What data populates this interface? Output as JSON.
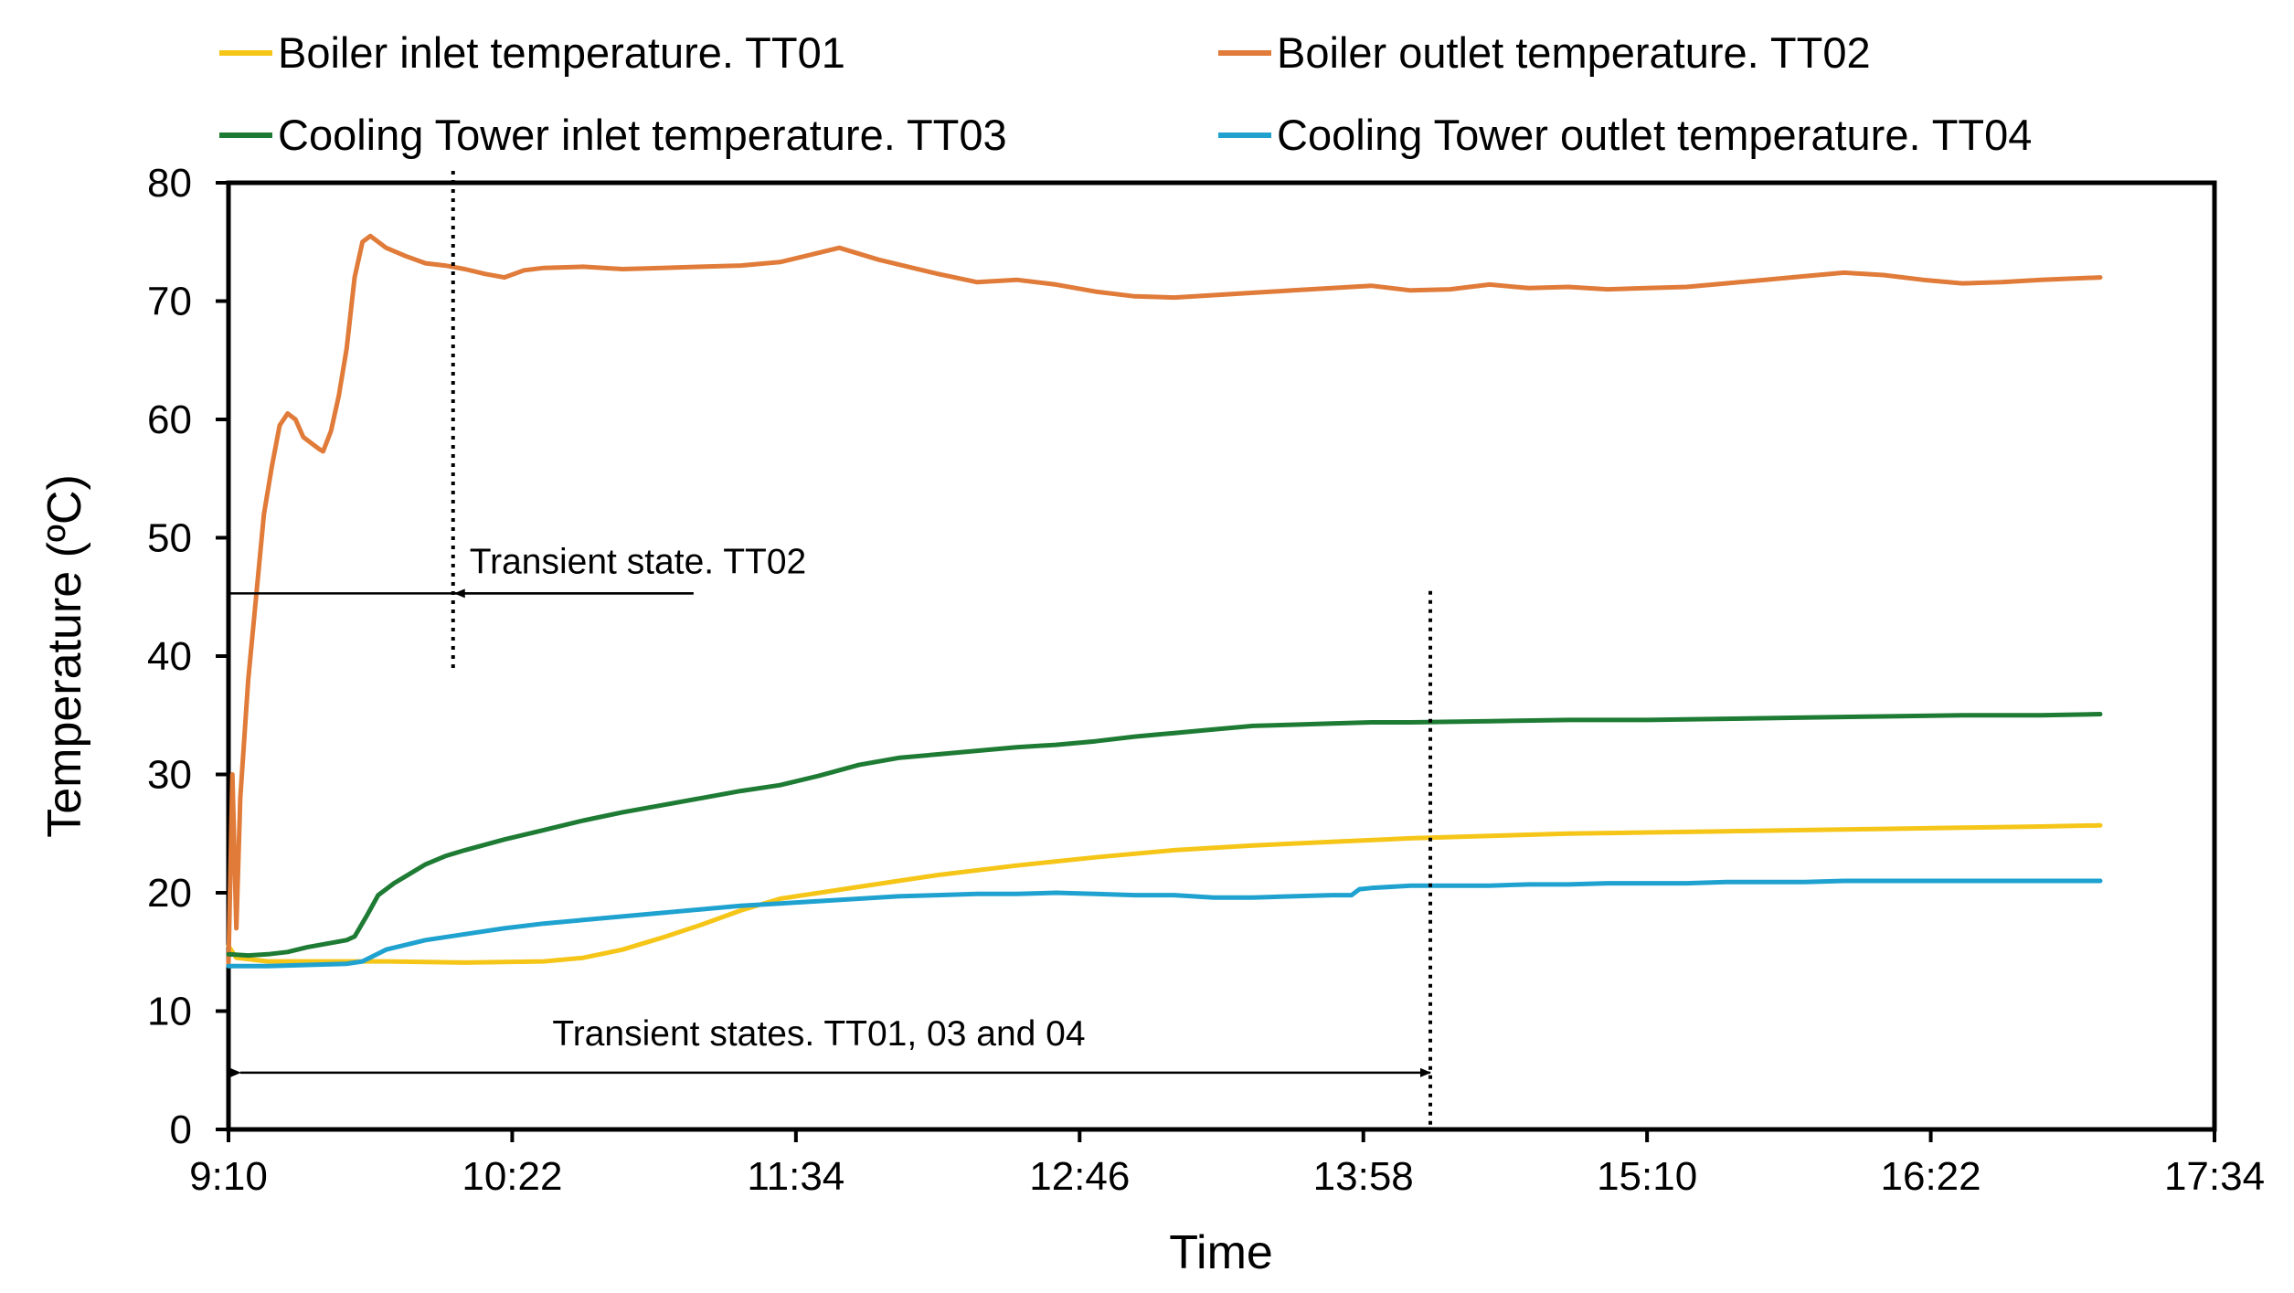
{
  "chart_data": {
    "type": "line",
    "title": "",
    "xlabel": "Time",
    "ylabel": "Temperature (ºC)",
    "x_unit": "minutes since 9:10",
    "xlim": [
      0,
      504
    ],
    "ylim": [
      0,
      80
    ],
    "x_ticks": [
      {
        "value": 0,
        "label": "9:10"
      },
      {
        "value": 72,
        "label": "10:22"
      },
      {
        "value": 144,
        "label": "11:34"
      },
      {
        "value": 216,
        "label": "12:46"
      },
      {
        "value": 288,
        "label": "13:58"
      },
      {
        "value": 360,
        "label": "15:10"
      },
      {
        "value": 432,
        "label": "16:22"
      },
      {
        "value": 504,
        "label": "17:34"
      }
    ],
    "y_ticks": [
      0,
      10,
      20,
      30,
      40,
      50,
      60,
      70,
      80
    ],
    "grid": false,
    "legend_position": "top",
    "series": [
      {
        "name": "Boiler inlet temperature. TT01",
        "color": "#F5C518",
        "points": [
          [
            0,
            15.5
          ],
          [
            2,
            14.5
          ],
          [
            10,
            14.2
          ],
          [
            40,
            14.2
          ],
          [
            60,
            14.1
          ],
          [
            80,
            14.2
          ],
          [
            90,
            14.5
          ],
          [
            100,
            15.2
          ],
          [
            110,
            16.2
          ],
          [
            120,
            17.3
          ],
          [
            130,
            18.5
          ],
          [
            140,
            19.5
          ],
          [
            160,
            20.5
          ],
          [
            180,
            21.5
          ],
          [
            200,
            22.3
          ],
          [
            220,
            23.0
          ],
          [
            240,
            23.6
          ],
          [
            260,
            24.0
          ],
          [
            280,
            24.3
          ],
          [
            300,
            24.6
          ],
          [
            320,
            24.8
          ],
          [
            340,
            25.0
          ],
          [
            360,
            25.1
          ],
          [
            380,
            25.2
          ],
          [
            400,
            25.3
          ],
          [
            420,
            25.4
          ],
          [
            440,
            25.5
          ],
          [
            460,
            25.6
          ],
          [
            475,
            25.7
          ]
        ]
      },
      {
        "name": "Boiler outlet temperature. TT02",
        "color": "#E07B39",
        "points": [
          [
            0,
            14
          ],
          [
            1,
            30
          ],
          [
            2,
            17
          ],
          [
            3,
            28
          ],
          [
            5,
            38
          ],
          [
            7,
            45
          ],
          [
            9,
            52
          ],
          [
            11,
            56
          ],
          [
            13,
            59.5
          ],
          [
            15,
            60.5
          ],
          [
            17,
            60
          ],
          [
            19,
            58.5
          ],
          [
            21,
            58
          ],
          [
            23,
            57.5
          ],
          [
            24,
            57.3
          ],
          [
            26,
            59
          ],
          [
            28,
            62
          ],
          [
            30,
            66
          ],
          [
            32,
            72
          ],
          [
            34,
            75
          ],
          [
            36,
            75.5
          ],
          [
            40,
            74.5
          ],
          [
            45,
            73.8
          ],
          [
            50,
            73.2
          ],
          [
            55,
            73
          ],
          [
            60,
            72.7
          ],
          [
            65,
            72.3
          ],
          [
            70,
            72
          ],
          [
            75,
            72.6
          ],
          [
            80,
            72.8
          ],
          [
            90,
            72.9
          ],
          [
            100,
            72.7
          ],
          [
            110,
            72.8
          ],
          [
            120,
            72.9
          ],
          [
            130,
            73
          ],
          [
            140,
            73.3
          ],
          [
            150,
            74.1
          ],
          [
            155,
            74.5
          ],
          [
            165,
            73.5
          ],
          [
            180,
            72.3
          ],
          [
            190,
            71.6
          ],
          [
            200,
            71.8
          ],
          [
            210,
            71.4
          ],
          [
            220,
            70.8
          ],
          [
            230,
            70.4
          ],
          [
            240,
            70.3
          ],
          [
            250,
            70.5
          ],
          [
            260,
            70.7
          ],
          [
            270,
            70.9
          ],
          [
            280,
            71.1
          ],
          [
            290,
            71.3
          ],
          [
            300,
            70.9
          ],
          [
            310,
            71
          ],
          [
            320,
            71.4
          ],
          [
            330,
            71.1
          ],
          [
            340,
            71.2
          ],
          [
            350,
            71
          ],
          [
            360,
            71.1
          ],
          [
            370,
            71.2
          ],
          [
            380,
            71.5
          ],
          [
            390,
            71.8
          ],
          [
            400,
            72.1
          ],
          [
            410,
            72.4
          ],
          [
            420,
            72.2
          ],
          [
            430,
            71.8
          ],
          [
            440,
            71.5
          ],
          [
            450,
            71.6
          ],
          [
            460,
            71.8
          ],
          [
            475,
            72
          ]
        ]
      },
      {
        "name": "Cooling Tower inlet temperature. TT03",
        "color": "#1E7B34",
        "points": [
          [
            0,
            14.8
          ],
          [
            5,
            14.7
          ],
          [
            10,
            14.8
          ],
          [
            15,
            15.0
          ],
          [
            20,
            15.4
          ],
          [
            25,
            15.7
          ],
          [
            30,
            16.0
          ],
          [
            32,
            16.3
          ],
          [
            35,
            18
          ],
          [
            38,
            19.8
          ],
          [
            42,
            20.8
          ],
          [
            46,
            21.6
          ],
          [
            50,
            22.4
          ],
          [
            55,
            23.1
          ],
          [
            60,
            23.6
          ],
          [
            70,
            24.5
          ],
          [
            80,
            25.3
          ],
          [
            90,
            26.1
          ],
          [
            100,
            26.8
          ],
          [
            110,
            27.4
          ],
          [
            120,
            28.0
          ],
          [
            130,
            28.6
          ],
          [
            140,
            29.1
          ],
          [
            150,
            29.9
          ],
          [
            160,
            30.8
          ],
          [
            170,
            31.4
          ],
          [
            180,
            31.7
          ],
          [
            190,
            32.0
          ],
          [
            200,
            32.3
          ],
          [
            210,
            32.5
          ],
          [
            220,
            32.8
          ],
          [
            230,
            33.2
          ],
          [
            240,
            33.5
          ],
          [
            250,
            33.8
          ],
          [
            260,
            34.1
          ],
          [
            270,
            34.2
          ],
          [
            280,
            34.3
          ],
          [
            290,
            34.4
          ],
          [
            300,
            34.4
          ],
          [
            320,
            34.5
          ],
          [
            340,
            34.6
          ],
          [
            360,
            34.6
          ],
          [
            380,
            34.7
          ],
          [
            400,
            34.8
          ],
          [
            420,
            34.9
          ],
          [
            440,
            35.0
          ],
          [
            460,
            35.0
          ],
          [
            475,
            35.1
          ]
        ]
      },
      {
        "name": "Cooling Tower outlet temperature. TT04",
        "color": "#1FA2D0",
        "points": [
          [
            0,
            13.8
          ],
          [
            10,
            13.8
          ],
          [
            20,
            13.9
          ],
          [
            30,
            14.0
          ],
          [
            34,
            14.2
          ],
          [
            40,
            15.2
          ],
          [
            50,
            16.0
          ],
          [
            60,
            16.5
          ],
          [
            70,
            17.0
          ],
          [
            80,
            17.4
          ],
          [
            90,
            17.7
          ],
          [
            100,
            18.0
          ],
          [
            110,
            18.3
          ],
          [
            120,
            18.6
          ],
          [
            130,
            18.9
          ],
          [
            140,
            19.1
          ],
          [
            150,
            19.3
          ],
          [
            160,
            19.5
          ],
          [
            170,
            19.7
          ],
          [
            180,
            19.8
          ],
          [
            190,
            19.9
          ],
          [
            200,
            19.9
          ],
          [
            210,
            20.0
          ],
          [
            220,
            19.9
          ],
          [
            230,
            19.8
          ],
          [
            240,
            19.8
          ],
          [
            250,
            19.6
          ],
          [
            260,
            19.6
          ],
          [
            270,
            19.7
          ],
          [
            280,
            19.8
          ],
          [
            285,
            19.8
          ],
          [
            287,
            20.3
          ],
          [
            290,
            20.4
          ],
          [
            300,
            20.6
          ],
          [
            310,
            20.6
          ],
          [
            320,
            20.6
          ],
          [
            330,
            20.7
          ],
          [
            340,
            20.7
          ],
          [
            350,
            20.8
          ],
          [
            360,
            20.8
          ],
          [
            370,
            20.8
          ],
          [
            380,
            20.9
          ],
          [
            390,
            20.9
          ],
          [
            400,
            20.9
          ],
          [
            410,
            21.0
          ],
          [
            420,
            21.0
          ],
          [
            430,
            21.0
          ],
          [
            440,
            21.0
          ],
          [
            450,
            21.0
          ],
          [
            460,
            21.0
          ],
          [
            475,
            21.0
          ]
        ]
      }
    ],
    "annotations": [
      {
        "id": "tt02",
        "text": "Transient state. TT02",
        "vline_x": 57,
        "vline_y_range": [
          39,
          81
        ],
        "arrow_x_range": [
          0,
          57
        ],
        "arrow_from_x": 118,
        "arrow_y": 45.3
      },
      {
        "id": "others",
        "text": "Transient states. TT01, 03 and 04",
        "vline_x": 305,
        "vline_y_range": [
          0,
          45.5
        ],
        "arrow_x_range": [
          3,
          305
        ],
        "arrow_y": 4.8
      }
    ]
  }
}
